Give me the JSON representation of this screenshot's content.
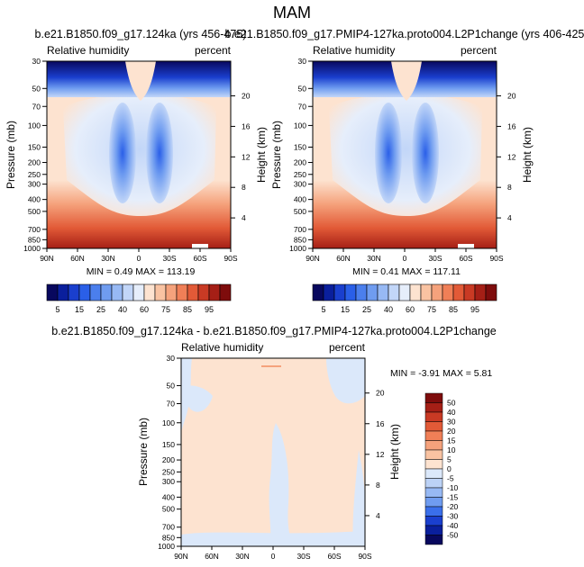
{
  "figure_title": "MAM",
  "chart_data": [
    {
      "type": "contour",
      "title": "b.e21.B1850.f09_g17.124ka (yrs 456-475)",
      "left_label": "Relative humidity",
      "right_label": "percent",
      "ylabel": "Pressure (mb)",
      "ylabel_right": "Height (km)",
      "x_ticks": [
        "90N",
        "60N",
        "30N",
        "0",
        "30S",
        "60S",
        "90S"
      ],
      "x_range": [
        90,
        -90
      ],
      "pressure_ticks": [
        30,
        50,
        70,
        100,
        150,
        200,
        250,
        300,
        400,
        500,
        700,
        850,
        1000
      ],
      "pressure_range": [
        30,
        1000
      ],
      "height_ticks": [
        4,
        8,
        12,
        16,
        20
      ],
      "min": "0.49",
      "max": "113.19",
      "min_max_text": "MIN =  0.49  MAX = 113.19",
      "colorbar_labels": [
        "5",
        "15",
        "25",
        "40",
        "60",
        "75",
        "85",
        "95"
      ],
      "colorbar_levels": [
        5,
        10,
        15,
        20,
        25,
        30,
        40,
        50,
        60,
        65,
        70,
        75,
        80,
        85,
        90,
        95
      ]
    },
    {
      "type": "contour",
      "title": "b.e21.B1850.f09_g17.PMIP4-127ka.proto004.L2P1change (yrs 406-425)",
      "left_label": "Relative humidity",
      "right_label": "percent",
      "ylabel": "Pressure (mb)",
      "ylabel_right": "Height (km)",
      "x_ticks": [
        "90N",
        "60N",
        "30N",
        "0",
        "30S",
        "60S",
        "90S"
      ],
      "x_range": [
        90,
        -90
      ],
      "pressure_ticks": [
        30,
        50,
        70,
        100,
        150,
        200,
        250,
        300,
        400,
        500,
        700,
        850,
        1000
      ],
      "pressure_range": [
        30,
        1000
      ],
      "height_ticks": [
        4,
        8,
        12,
        16,
        20
      ],
      "min": "0.41",
      "max": "117.11",
      "min_max_text": "MIN =  0.41  MAX = 117.11",
      "colorbar_labels": [
        "5",
        "15",
        "25",
        "40",
        "60",
        "75",
        "85",
        "95"
      ],
      "colorbar_levels": [
        5,
        10,
        15,
        20,
        25,
        30,
        40,
        50,
        60,
        65,
        70,
        75,
        80,
        85,
        90,
        95
      ]
    },
    {
      "type": "contour",
      "title": "b.e21.B1850.f09_g17.124ka - b.e21.B1850.f09_g17.PMIP4-127ka.proto004.L2P1change",
      "left_label": "Relative humidity",
      "right_label": "percent",
      "ylabel": "Pressure (mb)",
      "ylabel_right": "Height (km)",
      "x_ticks": [
        "90N",
        "60N",
        "30N",
        "0",
        "30S",
        "60S",
        "90S"
      ],
      "x_range": [
        90,
        -90
      ],
      "pressure_ticks": [
        30,
        50,
        70,
        100,
        150,
        200,
        250,
        300,
        400,
        500,
        700,
        850,
        1000
      ],
      "pressure_range": [
        30,
        1000
      ],
      "height_ticks": [
        4,
        8,
        12,
        16,
        20
      ],
      "min": "-3.91",
      "max": "5.81",
      "min_max_text": "MIN = -3.91   MAX =  5.81",
      "colorbar_labels": [
        "50",
        "40",
        "30",
        "20",
        "15",
        "10",
        "5",
        "0",
        "-5",
        "-10",
        "-15",
        "-20",
        "-30",
        "-40",
        "-50"
      ],
      "colorbar_levels": [
        50,
        40,
        30,
        20,
        15,
        10,
        5,
        0,
        -5,
        -10,
        -15,
        -20,
        -30,
        -40,
        -50
      ]
    }
  ],
  "colors": {
    "humidity_palette": [
      "#08085e",
      "#0a1f9c",
      "#1a3fce",
      "#2a5fe8",
      "#4b7fed",
      "#6f9cf0",
      "#97b9f4",
      "#c2d6f8",
      "#e6eefb",
      "#fde3d0",
      "#f9c3a2",
      "#f5a27c",
      "#f07f57",
      "#e25a37",
      "#c93a24",
      "#a51f16",
      "#7e0c0c"
    ],
    "difference_palette": [
      "#7e0c0c",
      "#a51f16",
      "#c93a24",
      "#e25a37",
      "#f07f57",
      "#f5a27c",
      "#f9c3a2",
      "#fde3d0",
      "#dbe8fa",
      "#bcd2f6",
      "#97b9f4",
      "#6f9cf0",
      "#3a6fea",
      "#1a3fce",
      "#0a1f9c",
      "#08085e"
    ],
    "difference_background": "#fde3d0",
    "difference_negative": "#dbe8fa"
  }
}
